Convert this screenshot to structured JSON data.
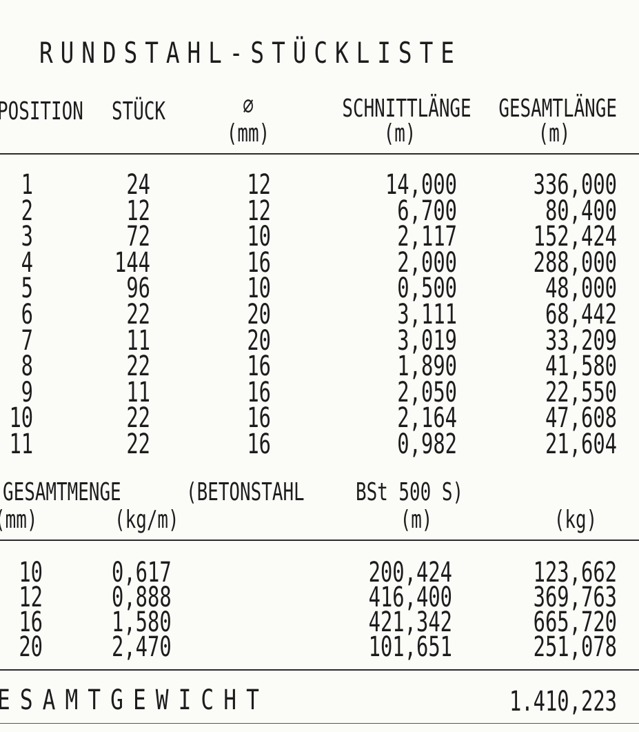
{
  "title": "RUNDSTAHL-STÜCKLISTE",
  "headers": {
    "position": "POSITION",
    "stueck": "STÜCK",
    "phi": "∅",
    "phi_unit": "(mm)",
    "schnitt": "SCHNITTLÄNGE",
    "schnitt_unit": "(m)",
    "gesamt": "GESAMTLÄNGE",
    "gesamt_unit": "(m)"
  },
  "rows": [
    {
      "pos": "1",
      "stk": "24",
      "phi": "12",
      "schnitt": "14,000",
      "gesamt": "336,000"
    },
    {
      "pos": "2",
      "stk": "12",
      "phi": "12",
      "schnitt": "6,700",
      "gesamt": "80,400"
    },
    {
      "pos": "3",
      "stk": "72",
      "phi": "10",
      "schnitt": "2,117",
      "gesamt": "152,424"
    },
    {
      "pos": "4",
      "stk": "144",
      "phi": "16",
      "schnitt": "2,000",
      "gesamt": "288,000"
    },
    {
      "pos": "5",
      "stk": "96",
      "phi": "10",
      "schnitt": "0,500",
      "gesamt": "48,000"
    },
    {
      "pos": "6",
      "stk": "22",
      "phi": "20",
      "schnitt": "3,111",
      "gesamt": "68,442"
    },
    {
      "pos": "7",
      "stk": "11",
      "phi": "20",
      "schnitt": "3,019",
      "gesamt": "33,209"
    },
    {
      "pos": "8",
      "stk": "22",
      "phi": "16",
      "schnitt": "1,890",
      "gesamt": "41,580"
    },
    {
      "pos": "9",
      "stk": "11",
      "phi": "16",
      "schnitt": "2,050",
      "gesamt": "22,550"
    },
    {
      "pos": "10",
      "stk": "22",
      "phi": "16",
      "schnitt": "2,164",
      "gesamt": "47,608"
    },
    {
      "pos": "11",
      "stk": "22",
      "phi": "16",
      "schnitt": "0,982",
      "gesamt": "21,604"
    }
  ],
  "summary_headers": {
    "gesamtmenge": "GESAMTMENGE",
    "betonstahl": "(BETONSTAHL",
    "bst": "BSt 500 S)",
    "mm": "(mm)",
    "kgm": "(kg/m)",
    "m": "(m)",
    "kg": "(kg)"
  },
  "summary_rows": [
    {
      "phi": "10",
      "kgm": "0,617",
      "m": "200,424",
      "kg": "123,662"
    },
    {
      "phi": "12",
      "kgm": "0,888",
      "m": "416,400",
      "kg": "369,763"
    },
    {
      "phi": "16",
      "kgm": "1,580",
      "m": "421,342",
      "kg": "665,720"
    },
    {
      "phi": "20",
      "kgm": "2,470",
      "m": "101,651",
      "kg": "251,078"
    }
  ],
  "total": {
    "label": "ESAMTGEWICHT",
    "value": "1.410,223"
  }
}
